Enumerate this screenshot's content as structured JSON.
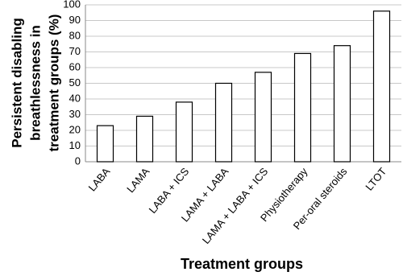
{
  "chart_data": {
    "type": "bar",
    "categories": [
      "LABA",
      "LAMA",
      "LABA + ICS",
      "LAMA + LABA",
      "LAMA + LABA + ICS",
      "Physiotherapy",
      "Per-oral steroids",
      "LTOT"
    ],
    "values": [
      23,
      29,
      38,
      50,
      57,
      69,
      74,
      96
    ],
    "color": "#ffffff",
    "edge_color": "#000000",
    "ylim": [
      0,
      100
    ],
    "yticks": [
      0,
      10,
      20,
      30,
      40,
      50,
      60,
      70,
      80,
      90,
      100
    ],
    "grid": true,
    "x_label": "Treatment groups",
    "y_label": [
      "Persistent disabling",
      "breathlessness in",
      "treatment groups (%)"
    ]
  }
}
